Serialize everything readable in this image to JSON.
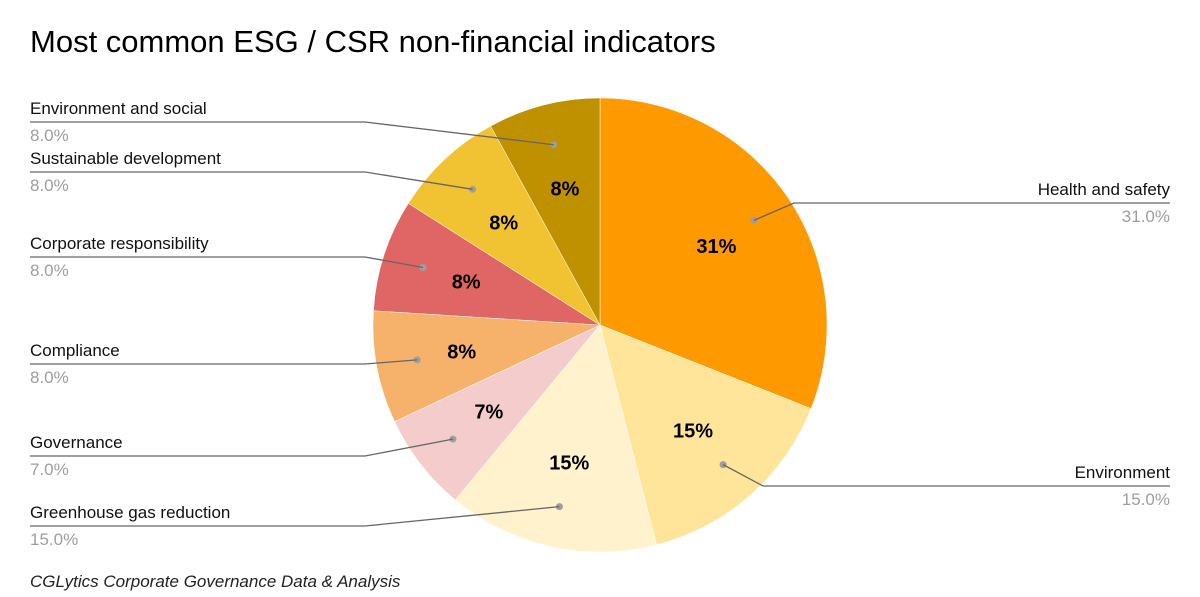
{
  "chart_data": {
    "type": "pie",
    "title": "Most common ESG / CSR non-financial indicators",
    "source": "CGLytics Corporate Governance Data & Analysis",
    "categories": [
      "Health and safety",
      "Environment",
      "Greenhouse gas reduction",
      "Governance",
      "Compliance",
      "Corporate responsibility",
      "Sustainable development",
      "Environment and social"
    ],
    "values": [
      31.0,
      15.0,
      15.0,
      7.0,
      8.0,
      8.0,
      8.0,
      8.0
    ],
    "slice_labels": [
      "31%",
      "15%",
      "15%",
      "7%",
      "8%",
      "8%",
      "8%",
      "8%"
    ],
    "callout_values": [
      "31.0%",
      "15.0%",
      "15.0%",
      "7.0%",
      "8.0%",
      "8.0%",
      "8.0%",
      "8.0%"
    ],
    "colors": [
      "#ff9900",
      "#ffe599",
      "#fff2cc",
      "#f4cccc",
      "#f6b26b",
      "#e06666",
      "#f1c232",
      "#bf9000"
    ],
    "legend": "callouts"
  }
}
